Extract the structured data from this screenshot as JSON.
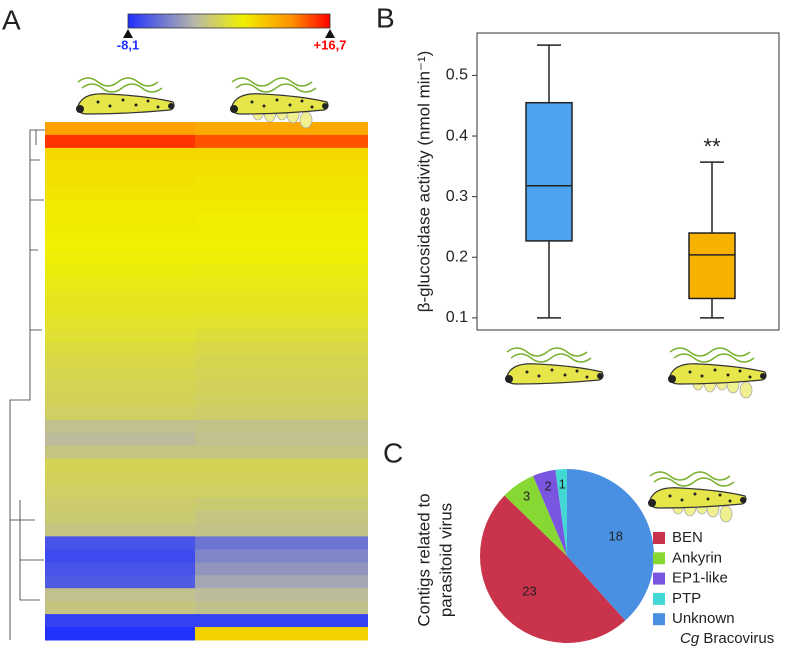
{
  "chart_data": [
    {
      "type": "heatmap",
      "panel": "A",
      "colorbar": {
        "lim": [
          -8.1,
          16.7
        ],
        "ticks": [
          {
            "value": -8.1,
            "label": "-8,1"
          },
          {
            "value": 16.7,
            "label": "+16,7"
          }
        ]
      },
      "rows": [
        [
          11,
          10.5
        ],
        [
          15,
          14
        ],
        [
          7.5,
          7.5
        ],
        [
          7,
          7
        ],
        [
          7,
          6.8
        ],
        [
          6.8,
          6.8
        ],
        [
          6.5,
          6.5
        ],
        [
          6.5,
          6.3
        ],
        [
          6.3,
          6.2
        ],
        [
          6,
          6
        ],
        [
          5.8,
          5.8
        ],
        [
          5.6,
          5.5
        ],
        [
          5.3,
          5.3
        ],
        [
          5,
          5
        ],
        [
          4.8,
          4.8
        ],
        [
          4.5,
          4.4
        ],
        [
          4.2,
          4
        ],
        [
          3.8,
          3.5
        ],
        [
          3.5,
          3.2
        ],
        [
          3.2,
          3
        ],
        [
          3,
          2.8
        ],
        [
          2.8,
          2.6
        ],
        [
          2.5,
          2.3
        ],
        [
          1,
          1.2
        ],
        [
          0.5,
          1
        ],
        [
          1.5,
          1.5
        ],
        [
          3,
          3
        ],
        [
          2.8,
          2.8
        ],
        [
          2.5,
          2.5
        ],
        [
          2.2,
          2
        ],
        [
          2,
          1.5
        ],
        [
          1.5,
          1.2
        ],
        [
          -6,
          -4
        ],
        [
          -6.5,
          -3
        ],
        [
          -6,
          -2
        ],
        [
          -5.5,
          -1
        ],
        [
          1,
          0.5
        ],
        [
          1.5,
          1
        ],
        [
          -7,
          -7
        ],
        [
          -8,
          8
        ]
      ]
    },
    {
      "type": "box",
      "panel": "B",
      "ylabel": "β-glucosidase activity (nmol min⁻¹)",
      "ylim": [
        0.08,
        0.57
      ],
      "yticks": [
        0.1,
        0.2,
        0.3,
        0.4,
        0.5
      ],
      "boxes": [
        {
          "color": "#4da3f0",
          "min": 0.1,
          "q1": 0.227,
          "median": 0.318,
          "q3": 0.455,
          "max": 0.55
        },
        {
          "color": "#f7b100",
          "min": 0.1,
          "q1": 0.132,
          "median": 0.204,
          "q3": 0.24,
          "max": 0.357,
          "annotation": "**"
        }
      ]
    },
    {
      "type": "pie",
      "panel": "C",
      "ylabel": [
        "Contigs related to",
        "parasitoid virus"
      ],
      "categories": [
        "BEN",
        "Ankyrin",
        "EP1-like",
        "PTP",
        "Unknown"
      ],
      "values": [
        23,
        3,
        2,
        1,
        18
      ],
      "colors": [
        "#c9334b",
        "#88d834",
        "#7a55e0",
        "#44d8d4",
        "#4a90e2"
      ],
      "legend_note": [
        "Cg",
        "Bracovirus"
      ]
    }
  ]
}
